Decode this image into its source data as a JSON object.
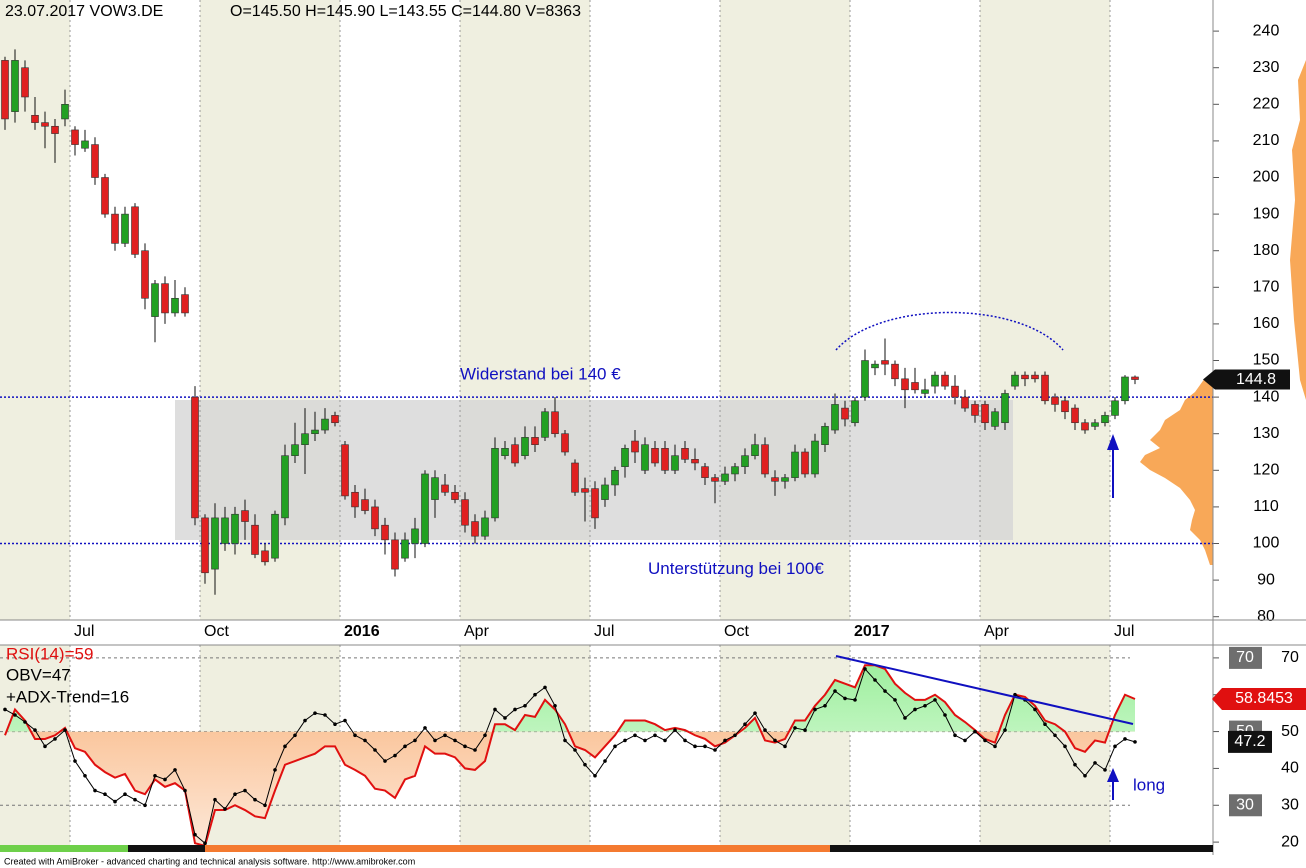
{
  "chart_data": [
    {
      "type": "candlestick",
      "title": "23.07.2017 VOW3.DE",
      "subtitle": "O=145.50 H=145.90 L=143.55 C=144.80 V=8363",
      "footer": "Created with AmiBroker - advanced charting and technical analysis software. http://www.amibroker.com",
      "categories": [
        null,
        null,
        null,
        null,
        null,
        null,
        null,
        "Jul",
        null,
        null,
        null,
        null,
        null,
        null,
        null,
        null,
        null,
        null,
        null,
        null,
        "Oct",
        null,
        null,
        null,
        null,
        null,
        null,
        null,
        null,
        null,
        null,
        null,
        null,
        null,
        "2016",
        null,
        null,
        null,
        null,
        null,
        null,
        null,
        null,
        null,
        null,
        null,
        "Apr",
        null,
        null,
        null,
        null,
        null,
        null,
        null,
        null,
        null,
        null,
        null,
        null,
        "Jul",
        null,
        null,
        null,
        null,
        null,
        null,
        null,
        null,
        null,
        null,
        null,
        null,
        "Oct",
        null,
        null,
        null,
        null,
        null,
        null,
        null,
        null,
        null,
        null,
        null,
        null,
        "2017",
        null,
        null,
        null,
        null,
        null,
        null,
        null,
        null,
        null,
        null,
        null,
        null,
        "Apr",
        null,
        null,
        null,
        null,
        null,
        null,
        null,
        null,
        null,
        null,
        null,
        null,
        "Jul",
        null,
        null
      ],
      "open": [
        232,
        218,
        230,
        217,
        215,
        214,
        216,
        213,
        208,
        209,
        200,
        190,
        182,
        192,
        180,
        162,
        171,
        163,
        168,
        140,
        107,
        93,
        100,
        100,
        109,
        105,
        98,
        96,
        107,
        124,
        127,
        130,
        131,
        135,
        127,
        114,
        112,
        110,
        105,
        101,
        96,
        100,
        100,
        112,
        116,
        114,
        112,
        106,
        102,
        107,
        124,
        127,
        124,
        129,
        129,
        136,
        130,
        122,
        115,
        115,
        112,
        116,
        121,
        128,
        120,
        126,
        126,
        120,
        126,
        123,
        121,
        118,
        117,
        119,
        121,
        124,
        127,
        118,
        117,
        118,
        125,
        119,
        127,
        131,
        137,
        133,
        140,
        148,
        150,
        149,
        145,
        144,
        141,
        143,
        146,
        143,
        140,
        138,
        138,
        132,
        133,
        143,
        146,
        146,
        146,
        140,
        139,
        137,
        133,
        132,
        133,
        135,
        139,
        145.5
      ],
      "high": [
        233,
        235,
        232,
        222,
        218,
        216,
        224,
        214,
        213,
        211,
        201,
        192,
        192,
        193,
        182,
        172,
        173,
        172,
        170,
        143,
        108,
        111,
        110,
        110,
        112,
        108,
        100,
        109,
        127,
        133,
        137,
        136,
        137,
        136,
        128,
        116,
        115,
        112,
        107,
        103,
        103,
        107,
        120,
        120,
        119,
        116,
        114,
        108,
        109,
        129,
        128,
        129,
        132,
        132,
        137,
        140,
        131,
        123,
        118,
        117,
        118,
        121,
        127,
        131,
        129,
        128,
        128,
        127,
        128,
        126,
        122,
        119,
        121,
        122,
        126,
        130,
        129,
        120,
        119,
        127,
        126,
        130,
        133,
        141,
        139,
        140,
        153,
        150,
        156,
        150,
        148,
        148,
        145,
        147,
        147,
        146,
        142,
        139,
        139,
        137,
        142,
        147,
        147,
        147,
        147,
        141,
        140,
        138,
        134,
        134,
        136,
        140,
        146,
        145.9
      ],
      "low": [
        213,
        215,
        218,
        213,
        208,
        204,
        214,
        206,
        207,
        198,
        189,
        180,
        181,
        178,
        164,
        155,
        160,
        162,
        162,
        105,
        89,
        86,
        98,
        97,
        101,
        96,
        94,
        95,
        105,
        122,
        119,
        128,
        130,
        132,
        112,
        107,
        108,
        102,
        97,
        91,
        95,
        96,
        99,
        107,
        113,
        111,
        103,
        100,
        101,
        106,
        123,
        121,
        123,
        125,
        128,
        129,
        124,
        113,
        106,
        104,
        110,
        113,
        118,
        122,
        119,
        121,
        119,
        119,
        122,
        120,
        116,
        111,
        116,
        117,
        119,
        123,
        118,
        113,
        115,
        117,
        118,
        118,
        125,
        130,
        132,
        132,
        139,
        146,
        146,
        143,
        137,
        141,
        140,
        141,
        142,
        138,
        136,
        133,
        131,
        131,
        131,
        142,
        143,
        144,
        138,
        136,
        134,
        131,
        130,
        131,
        132,
        134,
        138,
        143.55
      ],
      "close": [
        216,
        232,
        222,
        215,
        214,
        212,
        220,
        209,
        210,
        200,
        190,
        182,
        190,
        179,
        167,
        171,
        163,
        167,
        163,
        107,
        92,
        107,
        107,
        108,
        106,
        97,
        95,
        108,
        124,
        127,
        130,
        131,
        134,
        133,
        113,
        110,
        109,
        104,
        101,
        93,
        101,
        104,
        119,
        118,
        114,
        112,
        105,
        102,
        107,
        126,
        126,
        122,
        129,
        127,
        136,
        130,
        125,
        114,
        114,
        107,
        116,
        120,
        126,
        125,
        127,
        122,
        120,
        124,
        123,
        122,
        118,
        117,
        119,
        121,
        124,
        127,
        119,
        117,
        118,
        125,
        119,
        128,
        132,
        138,
        134,
        139,
        150,
        149,
        149,
        145,
        142,
        142,
        142,
        146,
        143,
        140,
        137,
        135,
        133,
        136,
        141,
        146,
        145,
        145,
        139,
        138,
        136,
        133,
        131,
        133,
        135,
        139,
        145.5,
        144.8
      ],
      "up_color": "#22a022",
      "down_color": "#e02020",
      "hlines": [
        {
          "value": 140,
          "label": "Widerstand bei 140 €",
          "color": "#1010c0"
        },
        {
          "value": 100,
          "label": "Unterstützung bei 100€",
          "color": "#1010c0"
        }
      ],
      "ylim": [
        79.1,
        248.5
      ],
      "yticks": [
        80,
        90,
        100,
        110,
        120,
        130,
        140,
        150,
        160,
        170,
        180,
        190,
        200,
        210,
        220,
        230,
        240
      ]
    },
    {
      "type": "line",
      "series": [
        {
          "name": "RSI(14)=59",
          "color": "#e01010",
          "values": [
            49,
            56,
            53,
            48,
            48,
            49,
            51,
            45.5,
            44.5,
            41,
            39,
            37.5,
            38.5,
            34,
            33,
            37,
            35,
            36,
            34,
            19.7,
            19,
            28.7,
            28.7,
            30,
            28.7,
            27,
            26.5,
            34,
            41,
            42,
            43,
            44,
            46,
            46,
            41,
            39.6,
            38,
            34.5,
            34,
            32,
            37,
            38,
            46,
            44,
            44,
            43,
            40,
            39.6,
            42,
            52,
            52,
            50.4,
            54.5,
            54,
            58.6,
            56,
            52,
            46,
            45,
            43,
            46,
            49,
            53,
            53,
            53,
            52,
            50.4,
            51,
            50.4,
            49,
            48,
            46,
            47,
            49,
            51,
            53.7,
            47.6,
            47,
            48,
            53,
            53,
            57,
            60,
            64,
            63,
            62,
            68,
            68,
            67,
            63,
            60.5,
            58.6,
            58.6,
            60,
            58,
            54.5,
            52.6,
            50.4,
            48,
            47,
            54.5,
            60,
            59.4,
            57,
            53,
            52,
            50,
            45.5,
            44.5,
            47.6,
            47,
            54.5,
            60,
            58.8453
          ]
        },
        {
          "name": "OBV=47",
          "color": "#000000",
          "values": [
            56,
            54.5,
            52.6,
            50.4,
            46,
            48,
            50.4,
            42,
            38,
            34,
            33,
            31,
            33,
            31.5,
            30,
            38,
            37,
            39.6,
            34,
            22,
            19.7,
            31.5,
            29,
            33,
            34,
            31.5,
            30,
            39.6,
            46,
            49,
            53,
            55,
            54.5,
            52,
            53,
            49,
            47.6,
            45,
            42,
            43.5,
            46,
            47.6,
            51,
            47.6,
            49,
            47.6,
            46,
            45,
            49,
            56,
            53.7,
            56,
            57,
            60,
            62,
            57,
            47.6,
            45,
            41,
            38,
            42,
            46,
            47.6,
            49,
            47.6,
            49,
            47.6,
            50.4,
            47.6,
            46,
            46,
            45,
            47.6,
            49,
            52,
            55,
            50.4,
            47.6,
            46,
            51,
            50.4,
            56,
            57,
            61,
            59,
            58.6,
            67,
            64,
            61,
            58.6,
            53.7,
            56,
            57,
            58.6,
            54.5,
            49,
            47.6,
            50,
            47.6,
            46,
            50.4,
            60,
            58.6,
            56,
            52,
            49,
            46,
            41,
            38,
            41.5,
            39.6,
            46,
            48,
            47.2
          ]
        }
      ],
      "annotations": [
        "+ADX-Trend=16",
        "long"
      ],
      "levels": [
        70,
        50,
        30
      ],
      "ylim": [
        16.5,
        73.5
      ],
      "yticks": [
        20,
        30,
        40,
        50,
        60,
        70
      ]
    }
  ]
}
